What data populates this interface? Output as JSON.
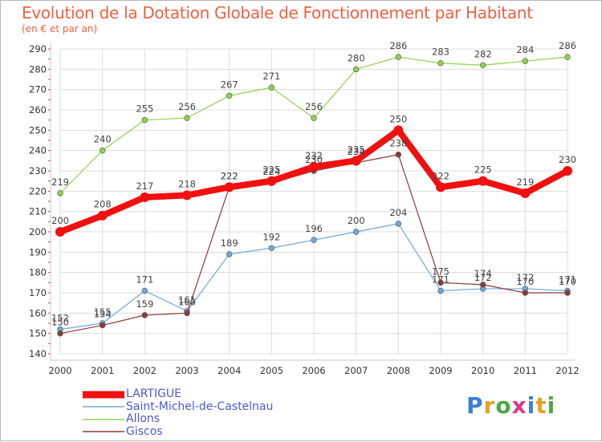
{
  "header": {
    "title": "Evolution de la Dotation Globale de Fonctionnement par Habitant",
    "subtitle": "(en € et par an)"
  },
  "logo": {
    "text": "Proxiti",
    "colors": [
      "#3a7fd4",
      "#e8a020",
      "#4aa84a",
      "#d83a8a",
      "#3a7fd4",
      "#e8a020",
      "#4aa84a"
    ]
  },
  "chart_data": {
    "type": "line",
    "x": [
      2000,
      2001,
      2002,
      2003,
      2004,
      2005,
      2006,
      2007,
      2008,
      2009,
      2010,
      2011,
      2012
    ],
    "ylim": [
      140,
      290
    ],
    "yticks": [
      140,
      150,
      160,
      170,
      180,
      190,
      200,
      210,
      220,
      230,
      240,
      250,
      260,
      270,
      280,
      290
    ],
    "grid": true,
    "legend_position": "bottom-left",
    "series": [
      {
        "name": "Allons",
        "color": "#90d050",
        "values": [
          219,
          240,
          255,
          256,
          267,
          271,
          256,
          280,
          286,
          283,
          282,
          284,
          286
        ]
      },
      {
        "name": "Saint-Michel-de-Castelnau",
        "color": "#70a8d8",
        "values": [
          152,
          155,
          171,
          161,
          189,
          192,
          196,
          200,
          204,
          171,
          172,
          172,
          171
        ]
      },
      {
        "name": "Giscos",
        "color": "#8b3a3a",
        "values": [
          150,
          154,
          159,
          160,
          222,
          224,
          230,
          234,
          238,
          175,
          174,
          170,
          170
        ]
      },
      {
        "name": "LARTIGUE",
        "color": "#f01010",
        "values": [
          200,
          208,
          217,
          218,
          222,
          225,
          232,
          235,
          250,
          222,
          225,
          219,
          230
        ]
      }
    ]
  }
}
